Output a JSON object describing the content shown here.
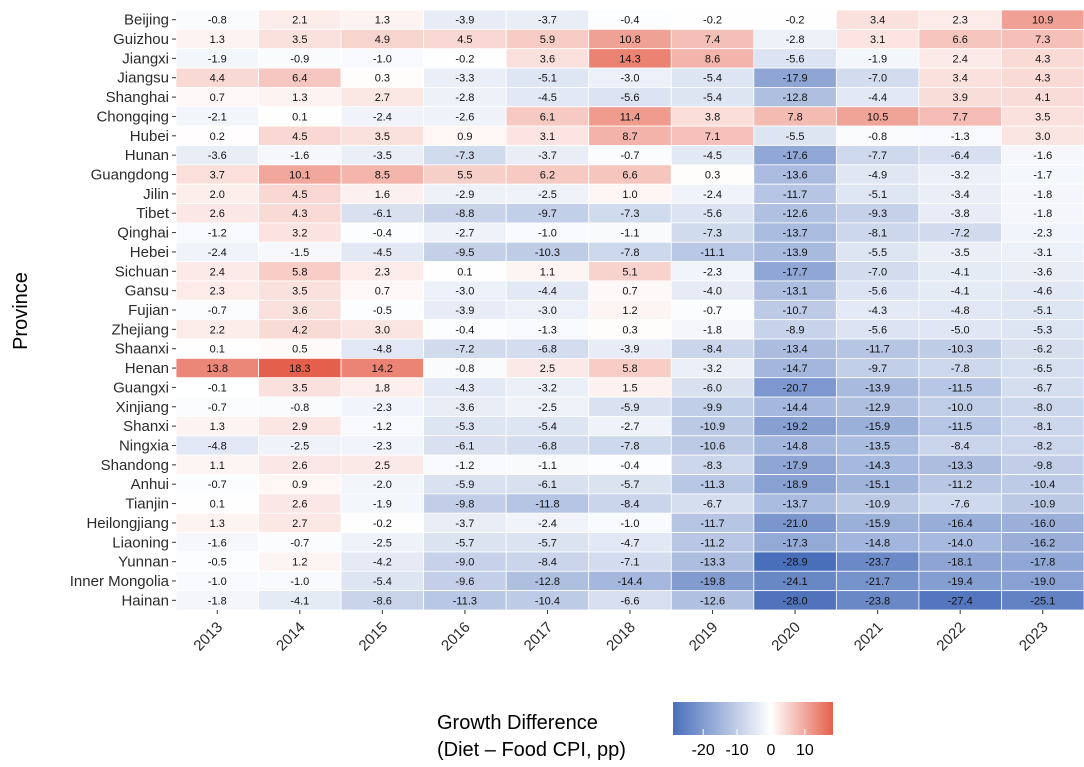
{
  "chart_data": {
    "type": "heatmap",
    "title": "",
    "xlabel": "",
    "ylabel": "Province",
    "x": [
      "2013",
      "2014",
      "2015",
      "2016",
      "2017",
      "2018",
      "2019",
      "2020",
      "2021",
      "2022",
      "2023"
    ],
    "y": [
      "Beijing",
      "Guizhou",
      "Jiangxi",
      "Jiangsu",
      "Shanghai",
      "Chongqing",
      "Hubei",
      "Hunan",
      "Guangdong",
      "Jilin",
      "Tibet",
      "Qinghai",
      "Hebei",
      "Sichuan",
      "Gansu",
      "Fujian",
      "Zhejiang",
      "Shaanxi",
      "Henan",
      "Guangxi",
      "Xinjiang",
      "Shanxi",
      "Ningxia",
      "Shandong",
      "Anhui",
      "Tianjin",
      "Heilongjiang",
      "Liaoning",
      "Yunnan",
      "Inner Mongolia",
      "Hainan"
    ],
    "values": [
      [
        -0.8,
        2.1,
        1.3,
        -3.9,
        -3.7,
        -0.4,
        -0.2,
        -0.2,
        3.4,
        2.3,
        10.9
      ],
      [
        1.3,
        3.5,
        4.9,
        4.5,
        5.9,
        10.8,
        7.4,
        -2.8,
        3.1,
        6.6,
        7.3
      ],
      [
        -1.9,
        -0.9,
        -1.0,
        -0.2,
        3.6,
        14.3,
        8.6,
        -5.6,
        -1.9,
        2.4,
        4.3
      ],
      [
        4.4,
        6.4,
        0.3,
        -3.3,
        -5.1,
        -3.0,
        -5.4,
        -17.9,
        -7.0,
        3.4,
        4.3
      ],
      [
        0.7,
        1.3,
        2.7,
        -2.8,
        -4.5,
        -5.6,
        -5.4,
        -12.8,
        -4.4,
        3.9,
        4.1
      ],
      [
        -2.1,
        0.1,
        -2.4,
        -2.6,
        6.1,
        11.4,
        3.8,
        7.8,
        10.5,
        7.7,
        3.5
      ],
      [
        0.2,
        4.5,
        3.5,
        0.9,
        3.1,
        8.7,
        7.1,
        -5.5,
        -0.8,
        -1.3,
        3.0
      ],
      [
        -3.6,
        -1.6,
        -3.5,
        -7.3,
        -3.7,
        -0.7,
        -4.5,
        -17.6,
        -7.7,
        -6.4,
        -1.6
      ],
      [
        3.7,
        10.1,
        8.5,
        5.5,
        6.2,
        6.6,
        0.3,
        -13.6,
        -4.9,
        -3.2,
        -1.7
      ],
      [
        2.0,
        4.5,
        1.6,
        -2.9,
        -2.5,
        1.0,
        -2.4,
        -11.7,
        -5.1,
        -3.4,
        -1.8
      ],
      [
        2.6,
        4.3,
        -6.1,
        -8.8,
        -9.7,
        -7.3,
        -5.6,
        -12.6,
        -9.3,
        -3.8,
        -1.8
      ],
      [
        -1.2,
        3.2,
        -0.4,
        -2.7,
        -1.0,
        -1.1,
        -7.3,
        -13.7,
        -8.1,
        -7.2,
        -2.3
      ],
      [
        -2.4,
        -1.5,
        -4.5,
        -9.5,
        -10.3,
        -7.8,
        -11.1,
        -13.9,
        -5.5,
        -3.5,
        -3.1
      ],
      [
        2.4,
        5.8,
        2.3,
        0.1,
        1.1,
        5.1,
        -2.3,
        -17.7,
        -7.0,
        -4.1,
        -3.6
      ],
      [
        2.3,
        3.5,
        0.7,
        -3.0,
        -4.4,
        0.7,
        -4.0,
        -13.1,
        -5.6,
        -4.1,
        -4.6
      ],
      [
        -0.7,
        3.6,
        -0.5,
        -3.9,
        -3.0,
        1.2,
        -0.7,
        -10.7,
        -4.3,
        -4.8,
        -5.1
      ],
      [
        2.2,
        4.2,
        3.0,
        -0.4,
        -1.3,
        0.3,
        -1.8,
        -8.9,
        -5.6,
        -5.0,
        -5.3
      ],
      [
        0.1,
        0.5,
        -4.8,
        -7.2,
        -6.8,
        -3.9,
        -8.4,
        -13.4,
        -11.7,
        -10.3,
        -6.2
      ],
      [
        13.8,
        18.3,
        14.2,
        -0.8,
        2.5,
        5.8,
        -3.2,
        -14.7,
        -9.7,
        -7.8,
        -6.5
      ],
      [
        -0.1,
        3.5,
        1.8,
        -4.3,
        -3.2,
        1.5,
        -6.0,
        -20.7,
        -13.9,
        -11.5,
        -6.7
      ],
      [
        -0.7,
        -0.8,
        -2.3,
        -3.6,
        -2.5,
        -5.9,
        -9.9,
        -14.4,
        -12.9,
        -10.0,
        -8.0
      ],
      [
        1.3,
        2.9,
        -1.2,
        -5.3,
        -5.4,
        -2.7,
        -10.9,
        -19.2,
        -15.9,
        -11.5,
        -8.1
      ],
      [
        -4.8,
        -2.5,
        -2.3,
        -6.1,
        -6.8,
        -7.8,
        -10.6,
        -14.8,
        -13.5,
        -8.4,
        -8.2
      ],
      [
        1.1,
        2.6,
        2.5,
        -1.2,
        -1.1,
        -0.4,
        -8.3,
        -17.9,
        -14.3,
        -13.3,
        -9.8
      ],
      [
        -0.7,
        0.9,
        -2.0,
        -5.9,
        -6.1,
        -5.7,
        -11.3,
        -18.9,
        -15.1,
        -11.2,
        -10.4
      ],
      [
        0.1,
        2.6,
        -1.9,
        -9.8,
        -11.8,
        -8.4,
        -6.7,
        -13.7,
        -10.9,
        -7.6,
        -10.9
      ],
      [
        1.3,
        2.7,
        -0.2,
        -3.7,
        -2.4,
        -1.0,
        -11.7,
        -21.0,
        -15.9,
        -16.4,
        -16.0
      ],
      [
        -1.6,
        -0.7,
        -2.5,
        -5.7,
        -5.7,
        -4.7,
        -11.2,
        -17.3,
        -14.8,
        -14.0,
        -16.2
      ],
      [
        -0.5,
        1.2,
        -4.2,
        -9.0,
        -8.4,
        -7.1,
        -13.3,
        -28.9,
        -23.7,
        -18.1,
        -17.8
      ],
      [
        -1.0,
        -1.0,
        -5.4,
        -9.6,
        -12.8,
        -14.4,
        -19.8,
        -24.1,
        -21.7,
        -19.4,
        -19.0
      ],
      [
        -1.8,
        -4.1,
        -8.6,
        -11.3,
        -10.4,
        -6.6,
        -12.6,
        -28.0,
        -23.8,
        -27.4,
        -25.1
      ]
    ],
    "color_scale": {
      "low_color": "#4a6fba",
      "mid_color": "#ffffff",
      "high_color": "#e5604c",
      "min": -28.9,
      "mid": 0,
      "max": 18.3
    },
    "legend": {
      "title_line1": "Growth Difference",
      "title_line2": "(Diet – Food CPI, pp)",
      "ticks": [
        -20,
        -10,
        0,
        10
      ],
      "placement": "bottom"
    },
    "grid": false
  }
}
